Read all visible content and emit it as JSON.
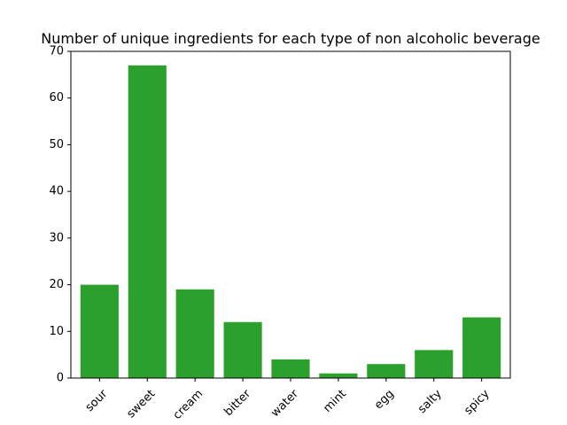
{
  "chart_data": {
    "type": "bar",
    "title": "Number of unique ingredients for each type of non alcoholic beverage",
    "xlabel": "",
    "ylabel": "",
    "categories": [
      "sour",
      "sweet",
      "cream",
      "bitter",
      "water",
      "mint",
      "egg",
      "salty",
      "spicy"
    ],
    "values": [
      20,
      67,
      19,
      12,
      4,
      1,
      3,
      6,
      13
    ],
    "ylim": [
      0,
      70
    ],
    "yticks": [
      0,
      10,
      20,
      30,
      40,
      50,
      60,
      70
    ],
    "bar_color": "#2ca02c",
    "grid": false,
    "legend": "none"
  }
}
